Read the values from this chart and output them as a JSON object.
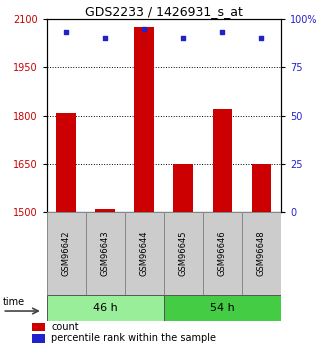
{
  "title": "GDS2233 / 1426931_s_at",
  "samples": [
    "GSM96642",
    "GSM96643",
    "GSM96644",
    "GSM96645",
    "GSM96646",
    "GSM96648"
  ],
  "groups": [
    {
      "label": "46 h",
      "indices": [
        0,
        1,
        2
      ],
      "color": "#99ee99"
    },
    {
      "label": "54 h",
      "indices": [
        3,
        4,
        5
      ],
      "color": "#44cc44"
    }
  ],
  "counts": [
    1808,
    1510,
    2075,
    1650,
    1820,
    1650
  ],
  "percentiles": [
    93,
    90,
    95,
    90,
    93,
    90
  ],
  "ylim_left": [
    1500,
    2100
  ],
  "ylim_right": [
    0,
    100
  ],
  "yticks_left": [
    1500,
    1650,
    1800,
    1950,
    2100
  ],
  "yticks_right": [
    0,
    25,
    50,
    75,
    100
  ],
  "bar_color": "#cc0000",
  "dot_color": "#2222cc",
  "label_color_left": "#cc0000",
  "label_color_right": "#2222cc",
  "grid_yticks": [
    1950,
    1800,
    1650
  ],
  "legend_count_label": "count",
  "legend_pct_label": "percentile rank within the sample",
  "time_label": "time",
  "title_fontsize": 9,
  "tick_fontsize": 7,
  "sample_fontsize": 6,
  "group_fontsize": 8,
  "legend_fontsize": 7,
  "bar_width": 0.5
}
